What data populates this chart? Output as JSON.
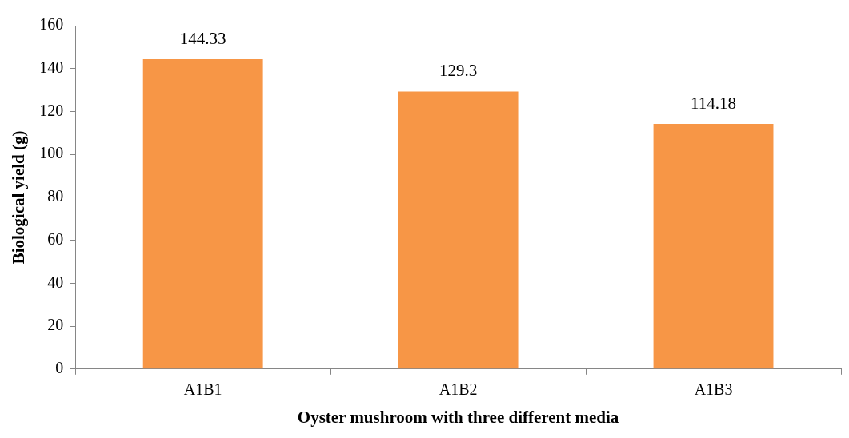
{
  "chart_data": {
    "type": "bar",
    "xlabel": "Oyster mushroom with three different media",
    "ylabel": "Biological yield (g)",
    "categories": [
      "A1B1",
      "A1B2",
      "A1B3"
    ],
    "series": [
      {
        "color": "#f79646",
        "values": [
          144.33,
          129.3,
          114.18
        ]
      }
    ],
    "ylim": [
      0,
      160
    ],
    "yticks": [
      0,
      20,
      40,
      60,
      80,
      100,
      120,
      140,
      160
    ],
    "grid": false,
    "legend": false,
    "data_labels": true
  }
}
